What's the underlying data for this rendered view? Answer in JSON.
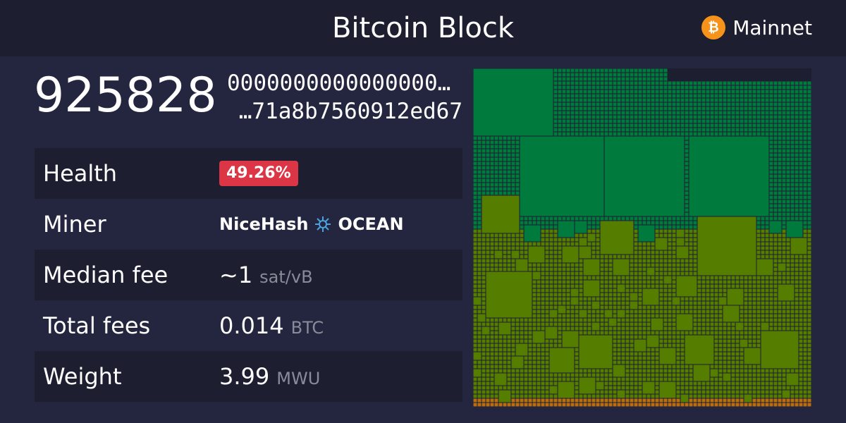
{
  "header": {
    "title": "Bitcoin Block",
    "network": "Mainnet",
    "network_icon": "bitcoin-icon",
    "network_icon_color": "#f7931a"
  },
  "block": {
    "height": "925828",
    "hash_start": "0000000000000000…",
    "hash_end": "…71a8b7560912ed67"
  },
  "stats": {
    "health": {
      "label": "Health",
      "value": "49.26%",
      "color": "#dc3545"
    },
    "miner": {
      "label": "Miner",
      "pool1": "NiceHash",
      "pool2": "OCEAN",
      "icon": "ocean-icon"
    },
    "median_fee": {
      "label": "Median fee",
      "value": "~1",
      "unit": "sat/vB"
    },
    "total_fees": {
      "label": "Total fees",
      "value": "0.014",
      "unit": "BTC"
    },
    "weight": {
      "label": "Weight",
      "value": "3.99",
      "unit": "MWU"
    }
  },
  "colors": {
    "bg": "#24263f",
    "panel": "#1d1f31",
    "tx_green": "#007a3d",
    "tx_olive": "#557d00",
    "tx_orange": "#b86d12"
  }
}
